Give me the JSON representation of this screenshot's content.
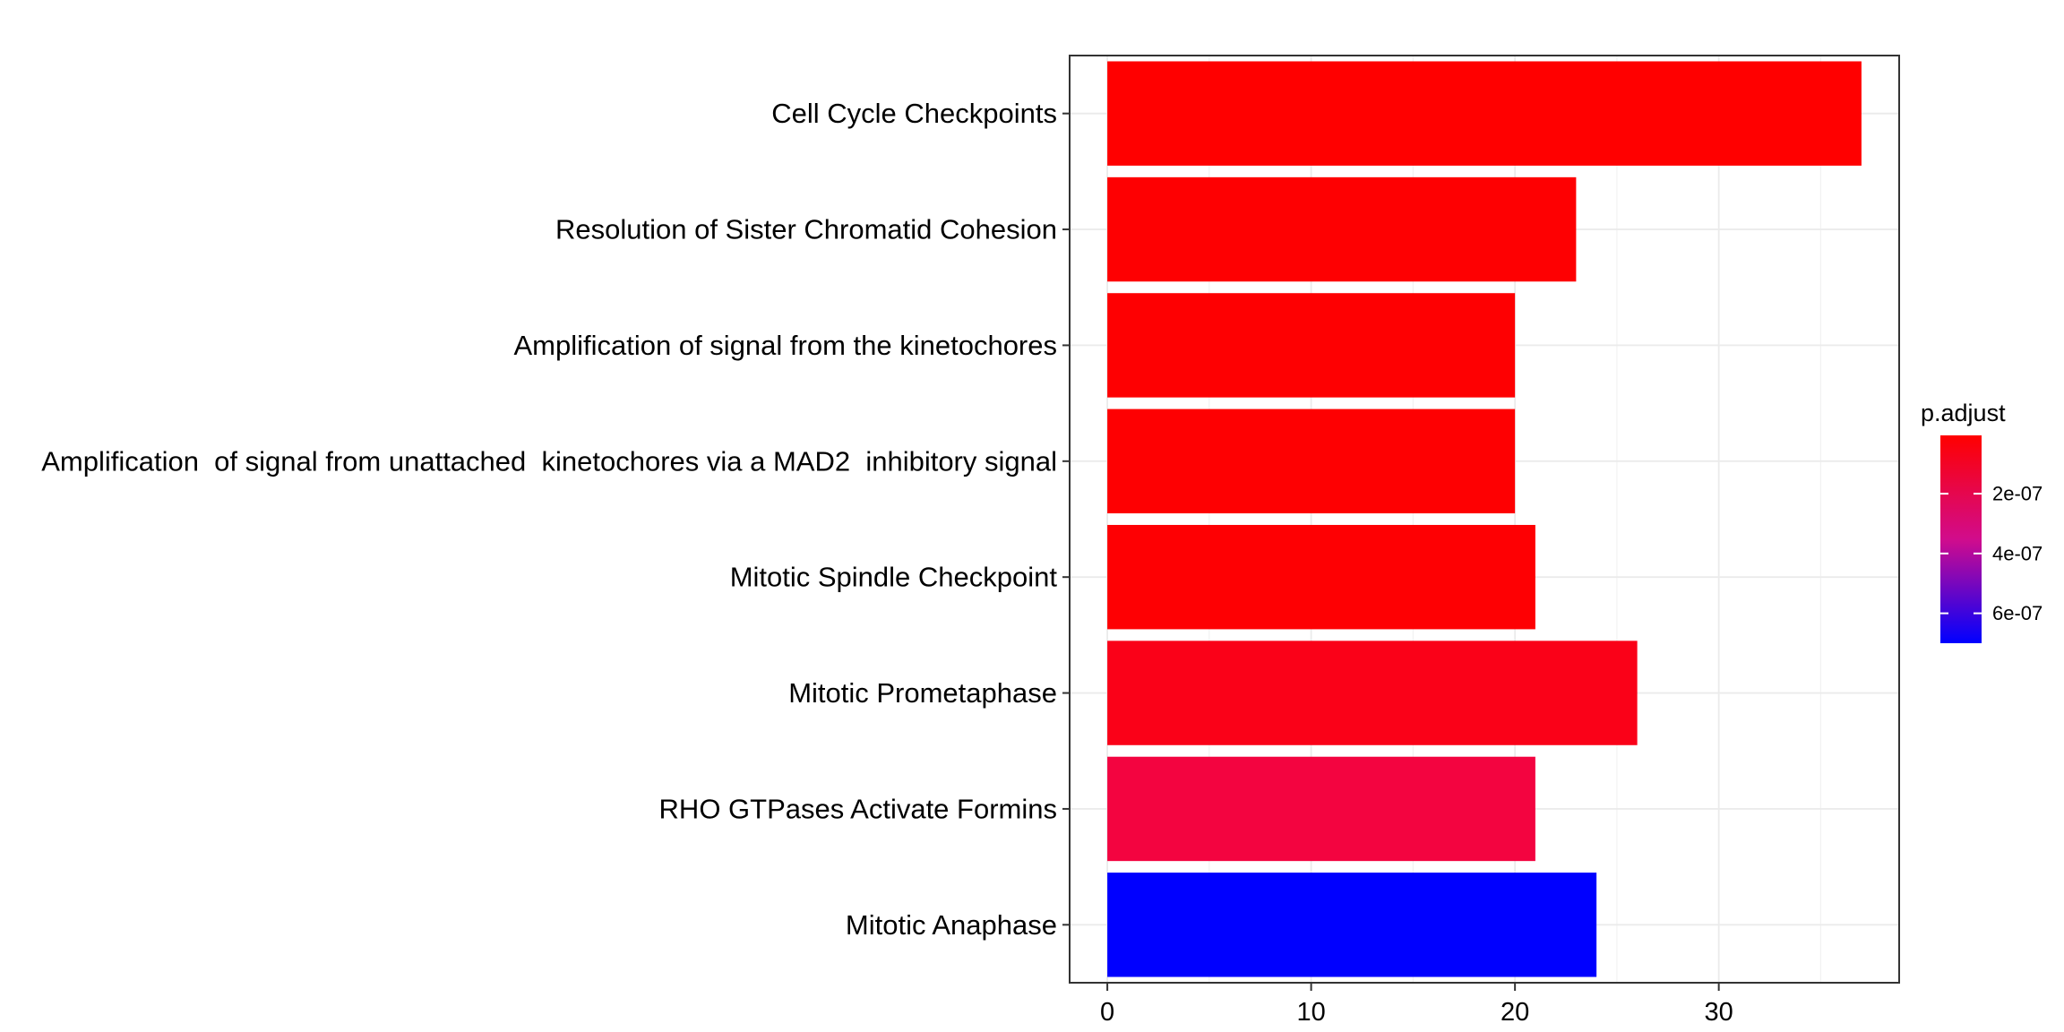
{
  "chart_data": {
    "type": "bar",
    "orientation": "horizontal",
    "title": "",
    "xlabel": "",
    "ylabel": "",
    "xlim": [
      -1.85,
      38.85
    ],
    "xticks": [
      0,
      10,
      20,
      30
    ],
    "grid": true,
    "categories": [
      "Cell Cycle Checkpoints",
      "Resolution of Sister Chromatid Cohesion",
      "Amplification of signal from the kinetochores",
      "Amplification  of signal from unattached  kinetochores via a MAD2  inhibitory signal",
      "Mitotic Spindle Checkpoint",
      "Mitotic Prometaphase",
      "RHO GTPases Activate Formins",
      "Mitotic Anaphase"
    ],
    "values": [
      37,
      23,
      20,
      20,
      21,
      26,
      21,
      24
    ],
    "p_adjust": [
      5e-09,
      2e-08,
      2.5e-08,
      2.5e-08,
      3e-08,
      3.6e-08,
      6.5e-08,
      7e-07
    ],
    "bar_colors": [
      "#FF0000",
      "#FE0002",
      "#FE0002",
      "#FE0002",
      "#FE0003",
      "#FA0118",
      "#F30440",
      "#0000FF"
    ],
    "legend": {
      "title": "p.adjust",
      "position": "right",
      "low_color": "#FF0000",
      "high_color": "#0000FF",
      "range": [
        5e-09,
        7e-07
      ],
      "ticks": [
        2e-07,
        4e-07,
        6e-07
      ],
      "tick_labels": [
        "2e-07",
        "4e-07",
        "6e-07"
      ]
    }
  }
}
